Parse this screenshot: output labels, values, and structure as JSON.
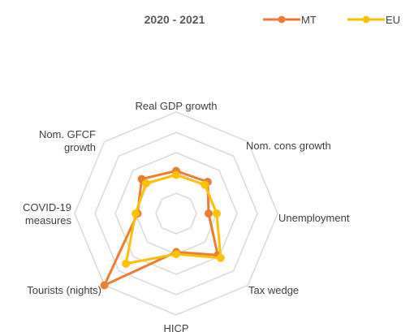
{
  "chart_data": {
    "type": "radar",
    "title": "2020 - 2021",
    "axes": [
      [
        "Real GDP growth"
      ],
      [
        "Nom. cons growth"
      ],
      [
        "Unemployment"
      ],
      [
        "Tax wedge"
      ],
      [
        "HICP"
      ],
      [
        "Tourists (nights)"
      ],
      [
        "COVID-19",
        "measures"
      ],
      [
        "Nom. GFCF",
        "growth"
      ]
    ],
    "rlim": [
      0,
      5
    ],
    "rings": 5,
    "grid": true,
    "legend_position": "top-right",
    "series": [
      {
        "name": "MT",
        "color": "#ED7D31",
        "values": [
          2.1,
          2.2,
          1.6,
          2.9,
          1.9,
          5.0,
          1.9,
          2.4
        ]
      },
      {
        "name": "EU",
        "color": "#FFC000",
        "values": [
          1.9,
          2.0,
          2.0,
          3.1,
          2.0,
          3.5,
          2.0,
          2.1
        ]
      }
    ]
  }
}
